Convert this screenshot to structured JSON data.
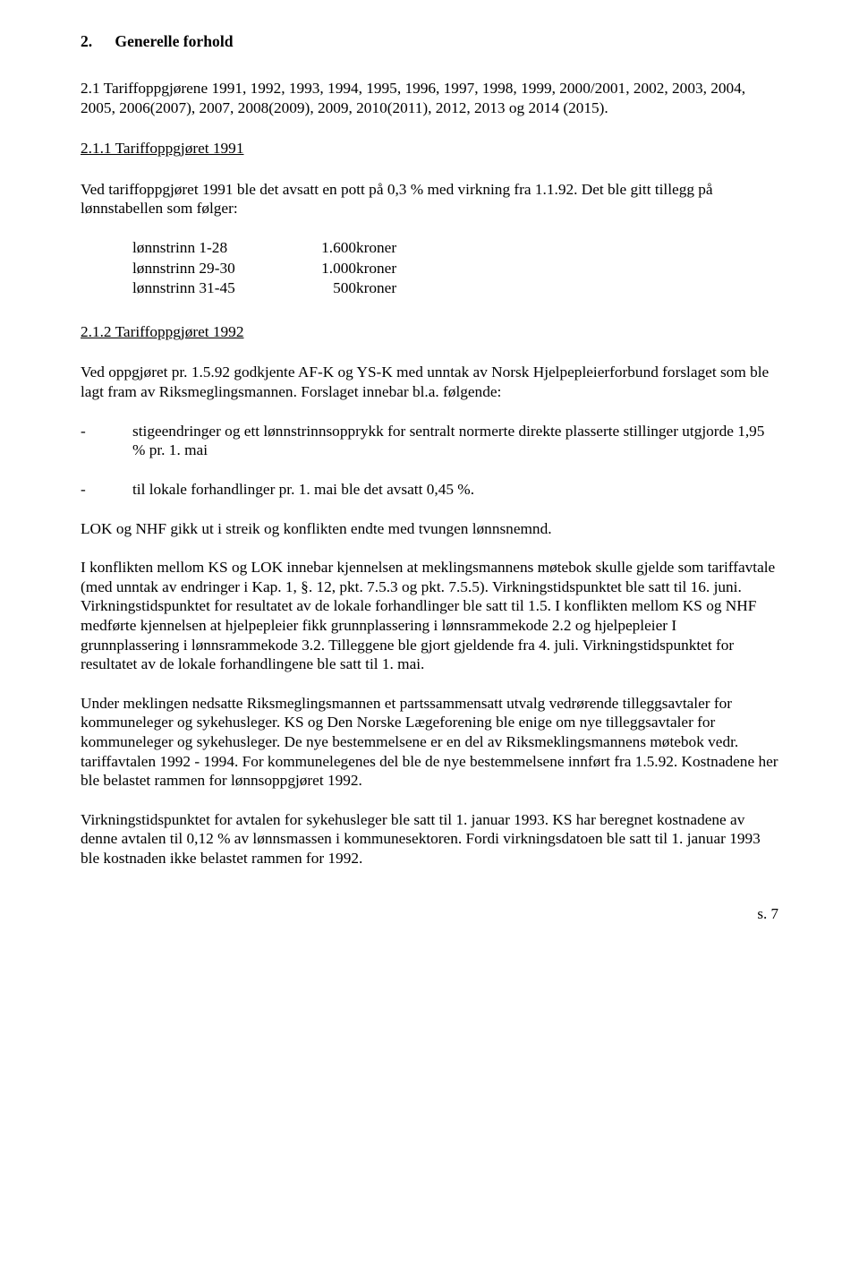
{
  "heading": {
    "number": "2.",
    "title": "Generelle forhold"
  },
  "section_2_1": {
    "title": "2.1 Tariffoppgjørene 1991, 1992, 1993, 1994, 1995, 1996, 1997, 1998, 1999, 2000/2001, 2002, 2003, 2004, 2005, 2006(2007), 2007, 2008(2009), 2009, 2010(2011), 2012, 2013 og 2014 (2015)."
  },
  "sec_2_1_1": {
    "heading": "2.1.1 Tariffoppgjøret 1991",
    "para": "Ved tariffoppgjøret 1991 ble det avsatt en pott på 0,3 % med virkning fra 1.1.92. Det ble gitt tillegg på lønnstabellen som følger:",
    "rows": [
      {
        "label": "lønnstrinn  1-28",
        "amount": "1.600",
        "unit": "kroner"
      },
      {
        "label": "lønnstrinn 29-30",
        "amount": "1.000",
        "unit": "kroner"
      },
      {
        "label": "lønnstrinn 31-45",
        "amount": "500",
        "unit": "kroner"
      }
    ]
  },
  "sec_2_1_2": {
    "heading": "2.1.2 Tariffoppgjøret 1992",
    "intro": "Ved oppgjøret pr. 1.5.92 godkjente AF-K og YS-K med unntak av Norsk Hjelpepleierforbund forslaget som ble lagt fram av Riksmeglingsmannen. Forslaget innebar bl.a. følgende:",
    "bullets": [
      "stigeendringer og ett lønnstrinnsopprykk for sentralt normerte direkte plasserte stillinger utgjorde 1,95 % pr. 1. mai",
      "til lokale forhandlinger pr. 1. mai ble det avsatt 0,45 %."
    ],
    "p1": "LOK og NHF gikk ut i streik og konflikten endte med tvungen lønnsnemnd.",
    "p2": "I konflikten mellom KS og LOK innebar kjennelsen at meklingsmannens møtebok skulle gjelde som tariffavtale (med unntak av endringer i Kap. 1, §. 12, pkt. 7.5.3 og pkt. 7.5.5). Virkningstidspunktet ble satt til 16. juni. Virkningstidspunktet for resultatet av de lokale forhandlinger ble satt til 1.5. I konflikten mellom KS og NHF medførte kjennelsen at hjelpepleier fikk grunnplassering i lønnsrammekode 2.2 og hjelpepleier I grunnplassering i lønnsrammekode 3.2. Tilleggene ble gjort gjeldende fra 4. juli. Virkningstidspunktet for resultatet av de lokale forhandlingene ble satt til 1. mai.",
    "p3": "Under meklingen nedsatte Riksmeglingsmannen et partssammensatt utvalg vedrørende tilleggsavtaler for kommuneleger og sykehusleger. KS og Den Norske Lægeforening ble enige om nye tilleggsavtaler for kommuneleger og sykehusleger. De nye bestemmelsene er en del av Riksmeklingsmannens møtebok vedr. tariffavtalen 1992 - 1994. For kommunelegenes del ble de nye bestemmelsene innført fra 1.5.92. Kostnadene her ble belastet rammen for lønnsoppgjøret 1992.",
    "p4": "Virkningstidspunktet for avtalen for sykehusleger ble satt til 1. januar 1993. KS har beregnet kostnadene av denne avtalen til 0,12 % av lønnsmassen i kommunesektoren. Fordi virkningsdatoen ble satt til 1. januar 1993 ble kostnaden ikke belastet rammen for 1992."
  },
  "pagefoot": "s. 7"
}
